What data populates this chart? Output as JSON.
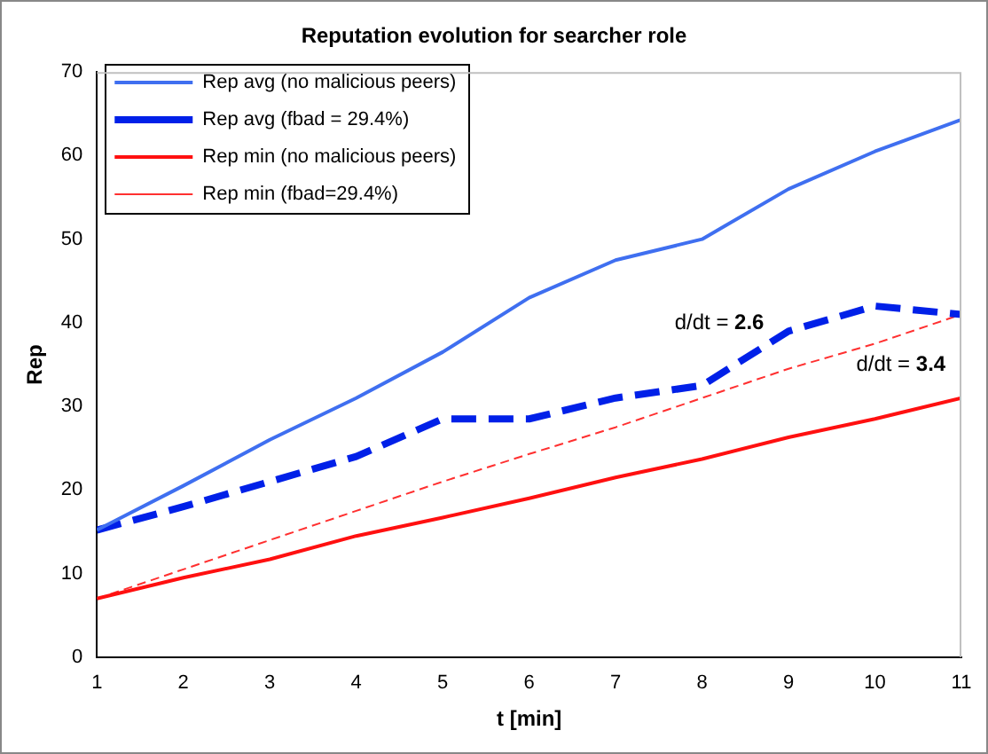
{
  "chart_data": {
    "type": "line",
    "title": "Reputation evolution for searcher role",
    "xlabel": "t [min]",
    "ylabel": "Rep",
    "x": [
      1,
      2,
      3,
      4,
      5,
      6,
      7,
      8,
      9,
      10,
      11
    ],
    "xlim": [
      1,
      11
    ],
    "xticks": [
      1,
      2,
      3,
      4,
      5,
      6,
      7,
      8,
      9,
      10,
      11
    ],
    "ylim": [
      0,
      70
    ],
    "yticks": [
      0,
      10,
      20,
      30,
      40,
      50,
      60,
      70
    ],
    "grid": false,
    "legend": "top left",
    "marker": "none",
    "series": [
      {
        "name": "Rep avg (no malicious peers)",
        "color": "#3f6ff0",
        "line_style": "solid",
        "values": [
          15.2,
          20.5,
          26,
          31,
          36.5,
          43,
          47.5,
          50,
          56,
          60.5,
          64.3
        ]
      },
      {
        "name": "Rep avg (fbad = 29.4%)",
        "color": "#0020e8",
        "line_style": "dashed",
        "values": [
          15.2,
          18,
          21,
          24,
          28.5,
          28.5,
          31,
          32.5,
          39,
          42,
          41
        ]
      },
      {
        "name": "Rep min (no malicious peers)",
        "color": "#ff1010",
        "line_style": "solid",
        "values": [
          7,
          9.5,
          11.7,
          14.5,
          16.7,
          19,
          21.5,
          23.7,
          26.3,
          28.5,
          31
        ]
      },
      {
        "name": "Rep min (fbad=29.4%)",
        "color": "#ff3030",
        "line_style": "dotted",
        "values": [
          7,
          10.5,
          14,
          17.5,
          21,
          24.3,
          27.5,
          31,
          34.5,
          37.5,
          41
        ]
      }
    ],
    "annotations": [
      "d/dt = 2.6",
      "d/dt = 3.4"
    ]
  }
}
